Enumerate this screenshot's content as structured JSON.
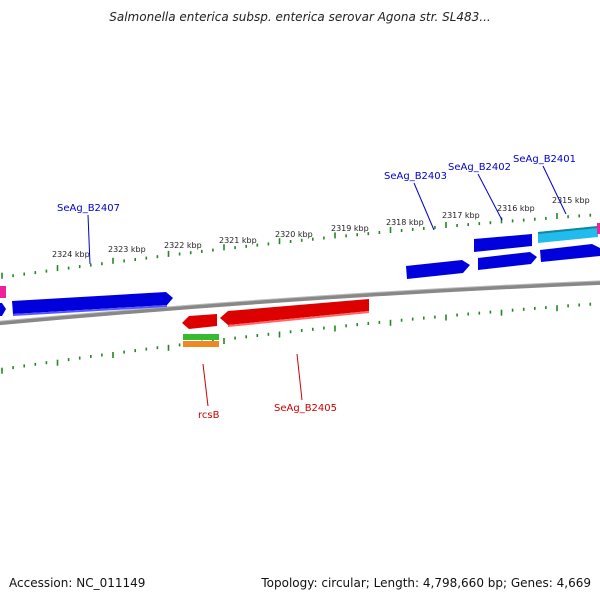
{
  "title": "Salmonella enterica subsp. enterica serovar Agona str. SL483...",
  "footer": {
    "accession": "Accession: NC_011149",
    "summary": "Topology: circular; Length: 4,798,660 bp; Genes: 4,669"
  },
  "colors": {
    "forward_gene": "#0000dd",
    "reverse_gene": "#dd0000",
    "highlight_gene": "#22bbee",
    "backbone": "#888888",
    "tick": "#228822",
    "label_forward": "#0000cc",
    "label_reverse": "#cc0000"
  },
  "tick_labels": [
    "2324 kbp",
    "2323 kbp",
    "2322 kbp",
    "2321 kbp",
    "2320 kbp",
    "2319 kbp",
    "2318 kbp",
    "2317 kbp",
    "2316 kbp",
    "2315 kbp"
  ],
  "gene_labels": {
    "b2407": "SeAg_B2407",
    "b2403": "SeAg_B2403",
    "b2402": "SeAg_B2402",
    "b2401": "SeAg_B2401",
    "rcsb": "rcsB",
    "b2405": "SeAg_B2405"
  }
}
